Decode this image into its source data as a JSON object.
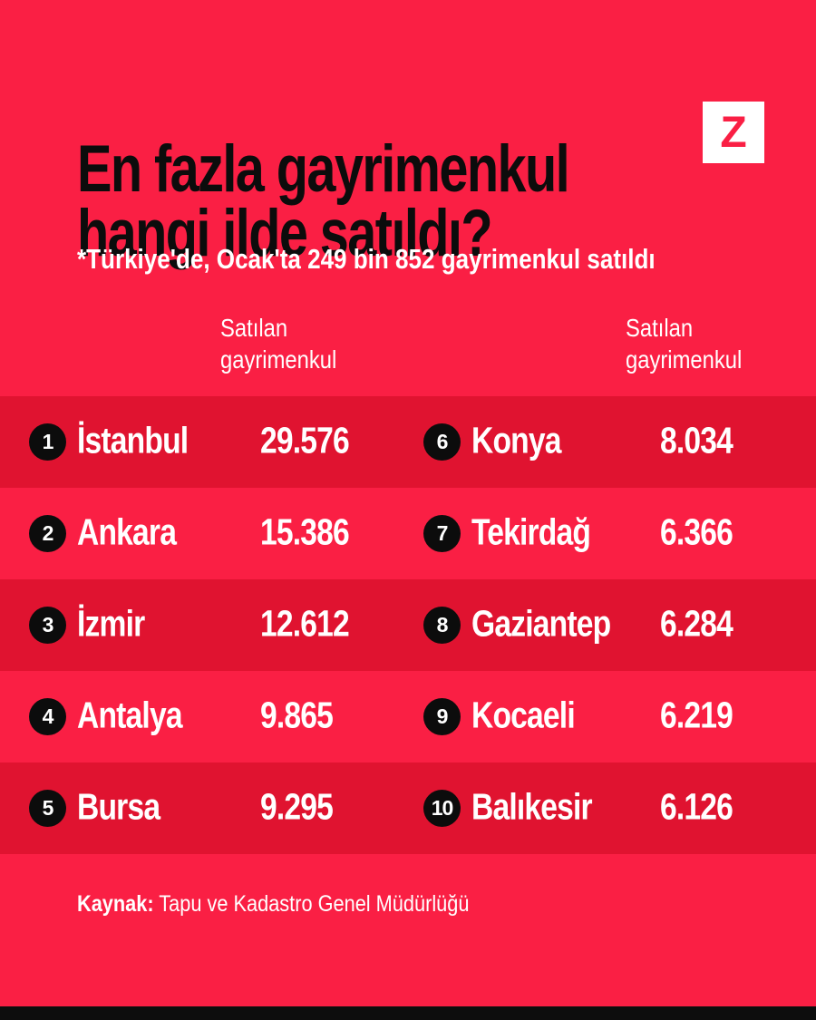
{
  "colors": {
    "background": "#FA1F44",
    "stripe_dark": "#E01330",
    "ink_black": "#0C0C0C",
    "text_white": "#FFFFFF"
  },
  "header": {
    "title_line1": "En fazla gayrimenkul",
    "title_line2": "hangi ilde satıldı?",
    "subtitle": "*Türkiye'de, Ocak'ta 249 bin 852 gayrimenkul satıldı",
    "logo_letter": "Z"
  },
  "columns": {
    "left_header_line1": "Satılan",
    "left_header_line2": "gayrimenkul",
    "right_header_line1": "Satılan",
    "right_header_line2": "gayrimenkul"
  },
  "table": {
    "rows_left": [
      {
        "rank": "1",
        "city": "İstanbul",
        "value": "29.576"
      },
      {
        "rank": "2",
        "city": "Ankara",
        "value": "15.386"
      },
      {
        "rank": "3",
        "city": "İzmir",
        "value": "12.612"
      },
      {
        "rank": "4",
        "city": "Antalya",
        "value": "9.865"
      },
      {
        "rank": "5",
        "city": "Bursa",
        "value": "9.295"
      }
    ],
    "rows_right": [
      {
        "rank": "6",
        "city": "Konya",
        "value": "8.034"
      },
      {
        "rank": "7",
        "city": "Tekirdağ",
        "value": "6.366"
      },
      {
        "rank": "8",
        "city": "Gaziantep",
        "value": "6.284"
      },
      {
        "rank": "9",
        "city": "Kocaeli",
        "value": "6.219"
      },
      {
        "rank": "10",
        "city": "Balıkesir",
        "value": "6.126"
      }
    ]
  },
  "footer": {
    "source_label": "Kaynak:",
    "source_text": " Tapu ve Kadastro Genel Müdürlüğü"
  },
  "chart_data": {
    "type": "table",
    "title": "En fazla gayrimenkul hangi ilde satıldı?",
    "subtitle": "*Türkiye'de, Ocak'ta 249 bin 852 gayrimenkul satıldı",
    "value_column_label": "Satılan gayrimenkul",
    "categories": [
      "İstanbul",
      "Ankara",
      "İzmir",
      "Antalya",
      "Bursa",
      "Konya",
      "Tekirdağ",
      "Gaziantep",
      "Kocaeli",
      "Balıkesir"
    ],
    "values": [
      29576,
      15386,
      12612,
      9865,
      9295,
      8034,
      6366,
      6284,
      6219,
      6126
    ],
    "ranks": [
      1,
      2,
      3,
      4,
      5,
      6,
      7,
      8,
      9,
      10
    ],
    "source": "Tapu ve Kadastro Genel Müdürlüğü",
    "layout": "two-column ranked list, rows 1-5 left, rows 6-10 right, alternating dark stripes"
  }
}
